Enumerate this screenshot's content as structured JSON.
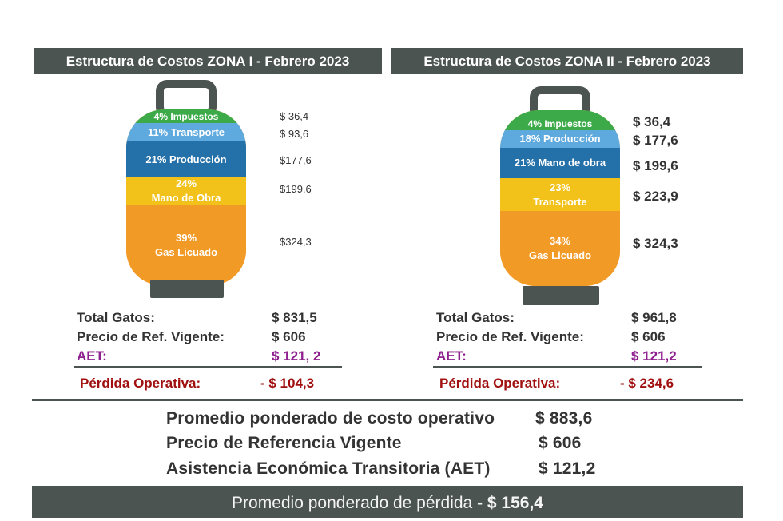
{
  "zone1": {
    "title": "Estructura de Costos ZONA I - Febrero 2023",
    "segments": [
      {
        "label": "4% Impuestos",
        "color": "#3daa4a"
      },
      {
        "label": "11% Transporte",
        "color": "#5ea9dd"
      },
      {
        "label": "21% Producción",
        "color": "#2470a8"
      },
      {
        "label_pct": "24%",
        "label_name": "Mano de Obra",
        "color": "#f2c21a"
      },
      {
        "label_pct": "39%",
        "label_name": "Gas Licuado",
        "color": "#f29a26"
      }
    ],
    "values": [
      "$ 36,4",
      "$ 93,6",
      "$177,6",
      "$199,6",
      "$324,3"
    ],
    "totals": {
      "total_label": "Total Gatos:",
      "total_value": "$ 831,5",
      "ref_label": "Precio de Ref. Vigente:",
      "ref_value": "$ 606",
      "aet_label": "AET:",
      "aet_value": "$ 121, 2",
      "loss_label": "Pérdida Operativa:",
      "loss_value": "- $ 104,3"
    }
  },
  "zone2": {
    "title": "Estructura de Costos ZONA II - Febrero 2023",
    "segments": [
      {
        "label": "4% Impuestos",
        "color": "#3daa4a"
      },
      {
        "label": "18% Producción",
        "color": "#5ea9dd"
      },
      {
        "label": "21% Mano de obra",
        "color": "#2470a8"
      },
      {
        "label_pct": "23%",
        "label_name": "Transporte",
        "color": "#f2c21a"
      },
      {
        "label_pct": "34%",
        "label_name": "Gas Licuado",
        "color": "#f29a26"
      }
    ],
    "values": [
      "$ 36,4",
      "$ 177,6",
      "$ 199,6",
      "$ 223,9",
      "$ 324,3"
    ],
    "totals": {
      "total_label": "Total Gatos:",
      "total_value": "$ 961,8",
      "ref_label": "Precio de Ref. Vigente:",
      "ref_value": "$ 606",
      "aet_label": "AET:",
      "aet_value": "$ 121,2",
      "loss_label": "Pérdida Operativa:",
      "loss_value": "- $ 234,6"
    }
  },
  "summary": {
    "row1_label": "Promedio ponderado de costo operativo",
    "row1_value": "$ 883,6",
    "row2_label": "Precio de Referencia Vigente",
    "row2_value": "$ 606",
    "row3_label": "Asistencia Económica Transitoria (AET)",
    "row3_value": "$ 121,2",
    "bottom_label": "Promedio ponderado de pérdida",
    "bottom_value": "- $ 156,4"
  },
  "colors": {
    "header_bg": "#4b5450",
    "aet": "#8e1f8e",
    "loss": "#a01010"
  }
}
